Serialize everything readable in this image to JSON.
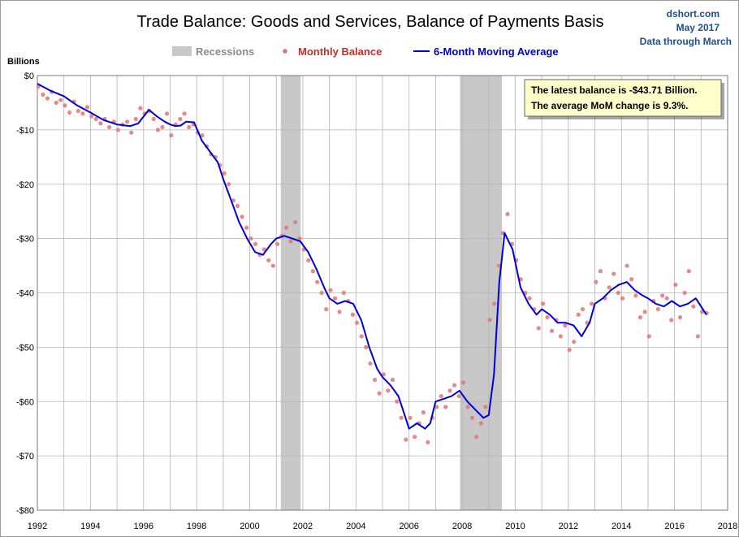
{
  "chart_data": {
    "type": "line",
    "title": "Trade Balance: Goods and Services, Balance of Payments Basis",
    "source": {
      "site": "dshort.com",
      "date": "May 2017",
      "through": "Data through March"
    },
    "ylabel": "Billions",
    "ylim": [
      -80,
      0
    ],
    "xlim": [
      1992,
      2018
    ],
    "y_ticks": [
      {
        "value": 0,
        "label": "$0"
      },
      {
        "value": -10,
        "label": "-$10"
      },
      {
        "value": -20,
        "label": "-$20"
      },
      {
        "value": -30,
        "label": "-$30"
      },
      {
        "value": -40,
        "label": "-$40"
      },
      {
        "value": -50,
        "label": "-$50"
      },
      {
        "value": -60,
        "label": "-$60"
      },
      {
        "value": -70,
        "label": "-$70"
      },
      {
        "value": -80,
        "label": "-$80"
      }
    ],
    "x_ticks": [
      {
        "value": 1992,
        "label": "1992"
      },
      {
        "value": 1994,
        "label": "1994"
      },
      {
        "value": 1996,
        "label": "1996"
      },
      {
        "value": 1998,
        "label": "1998"
      },
      {
        "value": 2000,
        "label": "2000"
      },
      {
        "value": 2002,
        "label": "2002"
      },
      {
        "value": 2004,
        "label": "2004"
      },
      {
        "value": 2006,
        "label": "2006"
      },
      {
        "value": 2008,
        "label": "2008"
      },
      {
        "value": 2010,
        "label": "2010"
      },
      {
        "value": 2012,
        "label": "2012"
      },
      {
        "value": 2014,
        "label": "2014"
      },
      {
        "value": 2016,
        "label": "2016"
      },
      {
        "value": 2018,
        "label": "2018"
      }
    ],
    "grid": true,
    "legend": [
      {
        "name": "Recessions",
        "kind": "band",
        "color": "#c8c8c8"
      },
      {
        "name": "Monthly Balance",
        "kind": "dot",
        "color": "#e07575"
      },
      {
        "name": "6-Month Moving Average",
        "kind": "line",
        "color": "#0000dd"
      }
    ],
    "recessions": [
      {
        "start": 2001.17,
        "end": 2001.92
      },
      {
        "start": 2007.92,
        "end": 2009.5
      }
    ],
    "annotation": [
      "The latest balance is -$43.71  Billion.",
      "The average MoM change is 9.3%."
    ],
    "series": [
      {
        "name": "6-Month Moving Average",
        "color": "#0000dd",
        "x": [
          1992.0,
          1992.5,
          1993.0,
          1993.5,
          1994.0,
          1994.5,
          1995.0,
          1995.5,
          1995.8,
          1996.2,
          1996.5,
          1996.8,
          1997.0,
          1997.2,
          1997.4,
          1997.6,
          1997.9,
          1998.2,
          1998.5,
          1998.8,
          1999.0,
          1999.3,
          1999.6,
          1999.9,
          2000.2,
          2000.5,
          2000.8,
          2001.0,
          2001.3,
          2001.6,
          2001.9,
          2002.2,
          2002.5,
          2002.8,
          2003.0,
          2003.3,
          2003.6,
          2003.9,
          2004.2,
          2004.5,
          2004.8,
          2005.0,
          2005.3,
          2005.6,
          2005.8,
          2006.0,
          2006.3,
          2006.6,
          2006.8,
          2007.0,
          2007.3,
          2007.6,
          2007.9,
          2008.2,
          2008.5,
          2008.8,
          2009.0,
          2009.2,
          2009.4,
          2009.6,
          2009.9,
          2010.2,
          2010.5,
          2010.8,
          2011.0,
          2011.3,
          2011.6,
          2011.9,
          2012.2,
          2012.5,
          2012.8,
          2013.0,
          2013.3,
          2013.6,
          2013.9,
          2014.2,
          2014.5,
          2014.8,
          2015.0,
          2015.3,
          2015.6,
          2015.9,
          2016.2,
          2016.5,
          2016.8,
          2017.0,
          2017.2
        ],
        "values": [
          -1.5,
          -2.8,
          -3.8,
          -5.5,
          -6.8,
          -8.2,
          -9.0,
          -9.3,
          -8.8,
          -6.3,
          -7.5,
          -8.5,
          -9.0,
          -9.3,
          -9.2,
          -8.5,
          -8.6,
          -12.0,
          -14.0,
          -16.0,
          -19.0,
          -23.0,
          -27.0,
          -30.0,
          -32.5,
          -33.0,
          -31.0,
          -30.0,
          -29.5,
          -30.0,
          -30.5,
          -32.5,
          -35.5,
          -39.0,
          -41.0,
          -42.0,
          -41.5,
          -42.0,
          -45.0,
          -50.0,
          -54.0,
          -55.5,
          -57.0,
          -59.0,
          -62.0,
          -65.0,
          -64.0,
          -65.0,
          -64.0,
          -60.0,
          -59.5,
          -59.0,
          -58.0,
          -60.0,
          -61.5,
          -63.0,
          -62.5,
          -55.0,
          -38.0,
          -29.0,
          -32.0,
          -39.0,
          -42.0,
          -44.0,
          -43.0,
          -44.0,
          -45.5,
          -45.5,
          -46.0,
          -48.0,
          -45.5,
          -42.0,
          -41.0,
          -39.5,
          -38.5,
          -38.0,
          -39.5,
          -40.5,
          -41.0,
          -42.0,
          -42.5,
          -41.5,
          -42.5,
          -42.0,
          -41.0,
          -42.5,
          -44.0
        ]
      },
      {
        "name": "Monthly Balance",
        "color": "#e07575",
        "x": [
          1992.04,
          1992.21,
          1992.38,
          1992.54,
          1992.71,
          1992.88,
          1993.04,
          1993.21,
          1993.38,
          1993.54,
          1993.71,
          1993.88,
          1994.04,
          1994.21,
          1994.38,
          1994.54,
          1994.71,
          1994.88,
          1995.04,
          1995.21,
          1995.38,
          1995.54,
          1995.71,
          1995.88,
          1996.04,
          1996.21,
          1996.38,
          1996.54,
          1996.71,
          1996.88,
          1997.04,
          1997.21,
          1997.38,
          1997.54,
          1997.71,
          1997.88,
          1998.04,
          1998.21,
          1998.38,
          1998.54,
          1998.71,
          1998.88,
          1999.04,
          1999.21,
          1999.38,
          1999.54,
          1999.71,
          1999.88,
          2000.04,
          2000.21,
          2000.38,
          2000.54,
          2000.71,
          2000.88,
          2001.04,
          2001.21,
          2001.38,
          2001.54,
          2001.71,
          2001.88,
          2002.04,
          2002.21,
          2002.38,
          2002.54,
          2002.71,
          2002.88,
          2003.04,
          2003.21,
          2003.38,
          2003.54,
          2003.71,
          2003.88,
          2004.04,
          2004.21,
          2004.38,
          2004.54,
          2004.71,
          2004.88,
          2005.04,
          2005.21,
          2005.38,
          2005.54,
          2005.71,
          2005.88,
          2006.04,
          2006.21,
          2006.38,
          2006.54,
          2006.71,
          2006.88,
          2007.04,
          2007.21,
          2007.38,
          2007.54,
          2007.71,
          2007.88,
          2008.04,
          2008.21,
          2008.38,
          2008.54,
          2008.71,
          2008.88,
          2009.04,
          2009.21,
          2009.38,
          2009.54,
          2009.71,
          2009.88,
          2010.04,
          2010.21,
          2010.38,
          2010.54,
          2010.71,
          2010.88,
          2011.04,
          2011.21,
          2011.38,
          2011.54,
          2011.71,
          2011.88,
          2012.04,
          2012.21,
          2012.38,
          2012.54,
          2012.71,
          2012.88,
          2013.04,
          2013.21,
          2013.38,
          2013.54,
          2013.71,
          2013.88,
          2014.04,
          2014.21,
          2014.38,
          2014.54,
          2014.71,
          2014.88,
          2015.04,
          2015.21,
          2015.38,
          2015.54,
          2015.71,
          2015.88,
          2016.04,
          2016.21,
          2016.38,
          2016.54,
          2016.71,
          2016.88,
          2017.04,
          2017.21
        ],
        "values": [
          -2.0,
          -3.5,
          -4.2,
          -3.0,
          -5.0,
          -4.5,
          -5.5,
          -6.8,
          -4.8,
          -6.5,
          -7.0,
          -5.8,
          -7.5,
          -8.0,
          -8.8,
          -8.0,
          -9.5,
          -8.5,
          -10.0,
          -9.0,
          -8.5,
          -10.5,
          -8.0,
          -6.0,
          -7.0,
          -6.5,
          -8.0,
          -10.0,
          -9.5,
          -7.0,
          -11.0,
          -9.0,
          -8.0,
          -7.0,
          -9.5,
          -9.0,
          -10.5,
          -11.0,
          -13.0,
          -14.5,
          -15.0,
          -16.5,
          -18.0,
          -20.0,
          -23.0,
          -24.0,
          -26.0,
          -28.0,
          -30.0,
          -31.0,
          -33.0,
          -32.0,
          -34.0,
          -35.0,
          -31.0,
          -29.5,
          -28.0,
          -30.5,
          -27.0,
          -30.0,
          -32.0,
          -34.0,
          -36.0,
          -38.0,
          -40.0,
          -43.0,
          -39.5,
          -41.0,
          -43.5,
          -40.0,
          -41.5,
          -44.0,
          -45.5,
          -48.0,
          -50.0,
          -53.0,
          -56.0,
          -58.5,
          -55.0,
          -58.0,
          -56.0,
          -60.0,
          -63.0,
          -67.0,
          -63.0,
          -66.5,
          -64.0,
          -62.0,
          -67.5,
          -63.0,
          -61.0,
          -59.0,
          -61.0,
          -58.0,
          -57.0,
          -59.0,
          -56.5,
          -61.0,
          -63.0,
          -66.5,
          -64.0,
          -61.0,
          -45.0,
          -42.0,
          -35.0,
          -29.0,
          -25.5,
          -31.0,
          -34.0,
          -37.5,
          -40.0,
          -41.0,
          -43.0,
          -46.5,
          -42.0,
          -44.5,
          -47.0,
          -45.0,
          -48.0,
          -46.0,
          -50.5,
          -49.0,
          -44.0,
          -43.0,
          -45.5,
          -42.0,
          -38.0,
          -36.0,
          -41.0,
          -39.0,
          -36.5,
          -40.0,
          -41.0,
          -35.0,
          -37.5,
          -40.5,
          -44.5,
          -43.5,
          -48.0,
          -41.5,
          -43.0,
          -40.5,
          -41.0,
          -45.0,
          -38.5,
          -44.5,
          -40.0,
          -36.0,
          -42.5,
          -48.0,
          -43.5,
          -43.71
        ]
      }
    ]
  }
}
